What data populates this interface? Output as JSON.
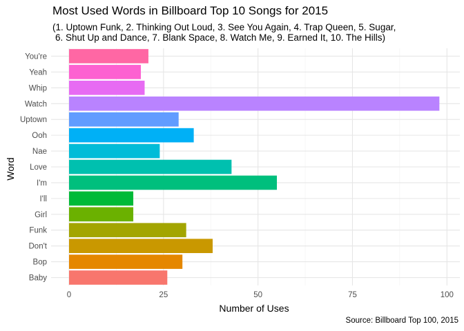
{
  "chart_data": {
    "type": "bar",
    "orientation": "horizontal",
    "title": "Most Used Words in Billboard Top 10 Songs for 2015",
    "subtitle_lines": [
      "(1. Uptown Funk, 2. Thinking Out Loud, 3. See You Again, 4. Trap Queen, 5. Sugar,",
      "6. Shut Up and Dance, 7. Blank Space, 8. Watch Me, 9. Earned It, 10. The Hills)"
    ],
    "caption": "Source: Billboard Top 100, 2015",
    "xlabel": "Number of Uses",
    "ylabel": "Word",
    "xlim": [
      0,
      100
    ],
    "xticks": [
      0,
      25,
      50,
      75,
      100
    ],
    "grid": true,
    "categories": [
      "Baby",
      "Bop",
      "Don't",
      "Funk",
      "Girl",
      "I'll",
      "I'm",
      "Love",
      "Nae",
      "Ooh",
      "Uptown",
      "Watch",
      "Whip",
      "Yeah",
      "You're"
    ],
    "values": [
      26,
      30,
      38,
      31,
      17,
      17,
      55,
      43,
      24,
      33,
      29,
      98,
      20,
      19,
      21
    ],
    "colors": [
      "#F8766D",
      "#E58700",
      "#C99800",
      "#A3A500",
      "#6BB100",
      "#00BA38",
      "#00BF7D",
      "#00C0AF",
      "#00BCD8",
      "#00B0F6",
      "#619CFF",
      "#B983FF",
      "#E76BF3",
      "#FD61D1",
      "#FF67A4"
    ]
  }
}
